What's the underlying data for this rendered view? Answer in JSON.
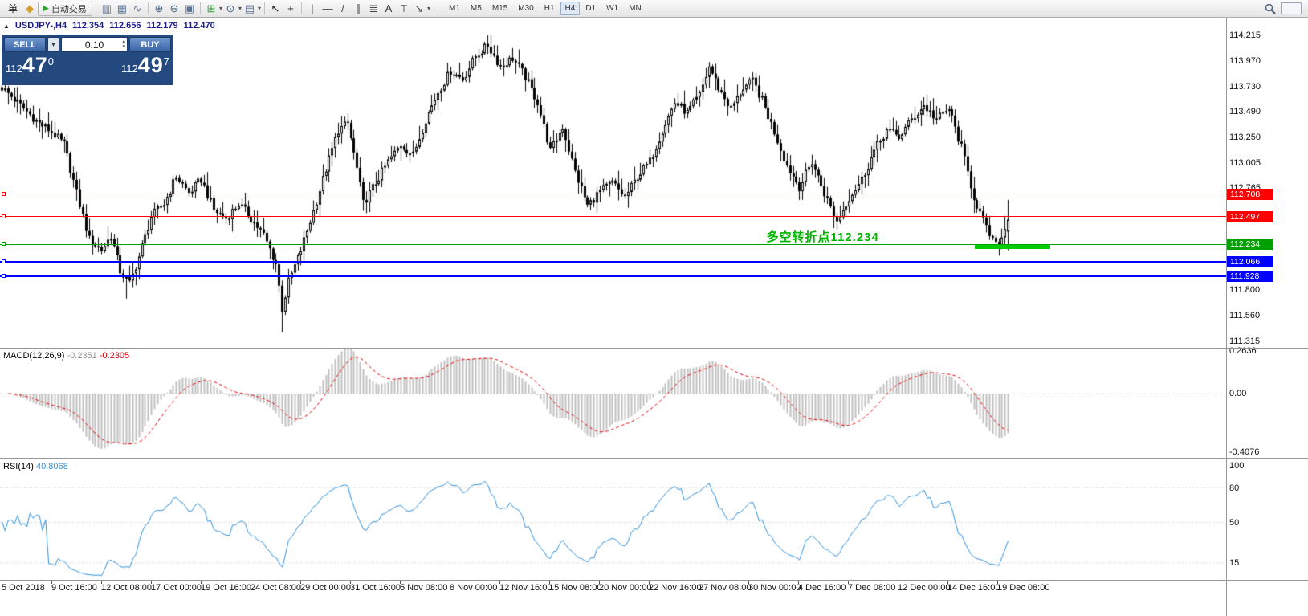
{
  "window": {
    "symbol_title": "USDJPY-,H4",
    "ohlc": {
      "open": "112.354",
      "high": "112.656",
      "low": "112.179",
      "close": "112.470"
    }
  },
  "toolbar": {
    "menu_label": "单",
    "items": [
      {
        "name": "new-order-icon"
      },
      {
        "name": "autotrading-button",
        "label": "自动交易"
      },
      {
        "name": "sep"
      },
      {
        "name": "bar-chart-icon"
      },
      {
        "name": "candlestick-chart-icon"
      },
      {
        "name": "line-chart-icon"
      },
      {
        "name": "sep"
      },
      {
        "name": "zoom-in-icon"
      },
      {
        "name": "zoom-out-icon"
      },
      {
        "name": "tile-windows-icon"
      },
      {
        "name": "sep"
      },
      {
        "name": "new-chart-icon",
        "dropdown": true
      },
      {
        "name": "periods-icon",
        "dropdown": true
      },
      {
        "name": "template-icon",
        "dropdown": true
      },
      {
        "name": "sep"
      },
      {
        "name": "cursor-icon"
      },
      {
        "name": "crosshair-icon"
      },
      {
        "name": "sep"
      },
      {
        "name": "vertical-line-icon"
      },
      {
        "name": "horizontal-line-icon"
      },
      {
        "name": "trendline-icon"
      },
      {
        "name": "channel-icon"
      },
      {
        "name": "fibonacci-icon"
      },
      {
        "name": "text-icon"
      },
      {
        "name": "label-icon"
      },
      {
        "name": "shapes-icon",
        "dropdown": true
      },
      {
        "name": "sep"
      }
    ],
    "timeframes": [
      "M1",
      "M5",
      "M15",
      "M30",
      "H1",
      "H4",
      "D1",
      "W1",
      "MN"
    ],
    "active_timeframe": "H4"
  },
  "trade_panel": {
    "sell_label": "SELL",
    "buy_label": "BUY",
    "volume": "0.10",
    "sell_price": {
      "main": "112",
      "big": "47",
      "sup": "0"
    },
    "buy_price": {
      "main": "112",
      "big": "49",
      "sup": "7"
    }
  },
  "chart_data": {
    "type": "candlestick",
    "symbol": "USDJPY-",
    "timeframe": "H4",
    "bars": 324,
    "visible_high": 114.215,
    "visible_low": 111.315,
    "last_bar": {
      "open": 112.354,
      "high": 112.656,
      "low": 112.179,
      "close": 112.47
    },
    "close_anchors": [
      [
        0,
        113.72
      ],
      [
        6,
        113.55
      ],
      [
        12,
        113.38
      ],
      [
        16,
        113.3
      ],
      [
        20,
        113.18
      ],
      [
        24,
        112.72
      ],
      [
        28,
        112.28
      ],
      [
        32,
        112.18
      ],
      [
        35,
        112.32
      ],
      [
        38,
        111.98
      ],
      [
        41,
        111.86
      ],
      [
        44,
        112.12
      ],
      [
        48,
        112.5
      ],
      [
        52,
        112.62
      ],
      [
        56,
        112.88
      ],
      [
        60,
        112.72
      ],
      [
        64,
        112.85
      ],
      [
        68,
        112.56
      ],
      [
        72,
        112.48
      ],
      [
        76,
        112.62
      ],
      [
        80,
        112.48
      ],
      [
        84,
        112.32
      ],
      [
        88,
        112.05
      ],
      [
        90,
        111.62
      ],
      [
        92,
        111.88
      ],
      [
        96,
        112.18
      ],
      [
        100,
        112.55
      ],
      [
        104,
        112.95
      ],
      [
        108,
        113.32
      ],
      [
        111,
        113.38
      ],
      [
        114,
        112.95
      ],
      [
        116,
        112.62
      ],
      [
        120,
        112.82
      ],
      [
        124,
        113.02
      ],
      [
        128,
        113.18
      ],
      [
        132,
        113.08
      ],
      [
        136,
        113.42
      ],
      [
        140,
        113.68
      ],
      [
        144,
        113.88
      ],
      [
        148,
        113.8
      ],
      [
        152,
        114.02
      ],
      [
        156,
        114.12
      ],
      [
        160,
        113.92
      ],
      [
        164,
        114.0
      ],
      [
        168,
        113.82
      ],
      [
        172,
        113.58
      ],
      [
        176,
        113.12
      ],
      [
        180,
        113.35
      ],
      [
        184,
        112.92
      ],
      [
        188,
        112.6
      ],
      [
        192,
        112.74
      ],
      [
        196,
        112.82
      ],
      [
        200,
        112.68
      ],
      [
        204,
        112.88
      ],
      [
        208,
        113.02
      ],
      [
        212,
        113.32
      ],
      [
        216,
        113.58
      ],
      [
        220,
        113.48
      ],
      [
        224,
        113.65
      ],
      [
        227,
        113.92
      ],
      [
        230,
        113.72
      ],
      [
        234,
        113.52
      ],
      [
        238,
        113.72
      ],
      [
        241,
        113.78
      ],
      [
        244,
        113.6
      ],
      [
        248,
        113.3
      ],
      [
        252,
        112.98
      ],
      [
        256,
        112.78
      ],
      [
        260,
        113.02
      ],
      [
        264,
        112.72
      ],
      [
        268,
        112.45
      ],
      [
        272,
        112.68
      ],
      [
        276,
        112.85
      ],
      [
        280,
        113.12
      ],
      [
        284,
        113.32
      ],
      [
        288,
        113.25
      ],
      [
        292,
        113.42
      ],
      [
        296,
        113.55
      ],
      [
        300,
        113.42
      ],
      [
        304,
        113.52
      ],
      [
        308,
        113.15
      ],
      [
        312,
        112.68
      ],
      [
        316,
        112.38
      ],
      [
        319,
        112.22
      ],
      [
        321,
        112.3
      ],
      [
        323,
        112.47
      ]
    ],
    "wick_overrides": [
      [
        40,
        "low",
        111.72
      ],
      [
        90,
        "low",
        111.4
      ],
      [
        156,
        "high",
        114.215
      ]
    ],
    "price_axis_labels": [
      "114.215",
      "113.970",
      "113.730",
      "113.490",
      "113.250",
      "113.005",
      "112.765",
      "111.800",
      "111.560",
      "111.315"
    ],
    "time_axis_labels": [
      "5 Oct 2018",
      "9 Oct 16:00",
      "12 Oct 08:00",
      "17 Oct 00:00",
      "19 Oct 16:00",
      "24 Oct 08:00",
      "29 Oct 00:00",
      "31 Oct 16:00",
      "5 Nov 08:00",
      "8 Nov 00:00",
      "12 Nov 16:00",
      "15 Nov 08:00",
      "20 Nov 00:00",
      "22 Nov 16:00",
      "27 Nov 08:00",
      "30 Nov 00:00",
      "4 Dec 16:00",
      "7 Dec 08:00",
      "12 Dec 00:00",
      "14 Dec 16:00",
      "19 Dec 08:00"
    ],
    "hlines": [
      {
        "price": 112.708,
        "color": "#ff0000",
        "width": 1,
        "label": "112.708"
      },
      {
        "price": 112.497,
        "color": "#ff0000",
        "width": 1,
        "label": "112.497"
      },
      {
        "price": 112.234,
        "color": "#00a000",
        "width": 1,
        "label": "112.234"
      },
      {
        "price": 112.066,
        "color": "#0000ff",
        "width": 2,
        "label": "112.066"
      },
      {
        "price": 111.928,
        "color": "#0000ff",
        "width": 2,
        "label": "111.928"
      }
    ],
    "green_segment": {
      "from_bar": 313,
      "to_bar": 337,
      "price": 112.215,
      "color": "#00cc00"
    },
    "annotation": {
      "text": "多空转折点112.234",
      "bar": 246,
      "price": 112.33,
      "color": "#00b400"
    },
    "macd": {
      "label": "MACD(12,26,9)",
      "value_main": "-0.2351",
      "value_signal": "-0.2305",
      "scale": [
        "0.2636",
        "0.00",
        "-0.4076"
      ],
      "histogram_color": "#bfbfbf",
      "signal_color": "#e60000"
    },
    "rsi": {
      "label": "RSI(14)",
      "value": "40.8068",
      "scale_labels": [
        "100",
        "80",
        "50",
        "15"
      ],
      "levels": [
        80,
        50,
        15
      ],
      "line_color": "#2f8fd8"
    }
  }
}
